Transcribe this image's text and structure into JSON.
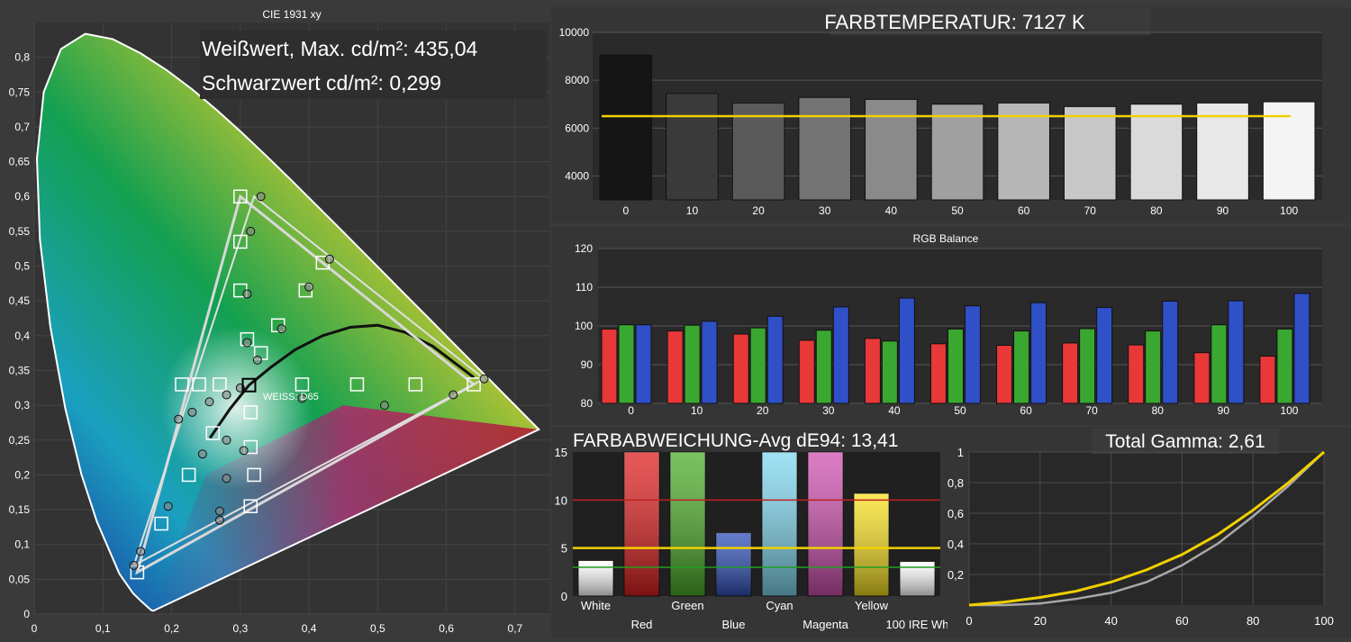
{
  "colors": {
    "background": "#3a3a3a",
    "panel": "#2b2b2b",
    "grid": "#5a5a5a",
    "text": "#ffffff",
    "yellow": "#f0d000",
    "red": "#e83838",
    "green": "#3aa830",
    "blue": "#3050c8",
    "target_red_line": "#c02020",
    "target_green_line": "#20a020"
  },
  "cie": {
    "title": "CIE 1931 xy",
    "white_max_text": "Weißwert, Max. cd/m²: 435,04",
    "black_text": "Schwarzwert cd/m²: 0,299",
    "white_point_label": "WEISS: D65",
    "x_ticks": [
      "0",
      "0,1",
      "0,2",
      "0,3",
      "0,4",
      "0,5",
      "0,6",
      "0,7"
    ],
    "y_ticks": [
      "0",
      "0,05",
      "0,1",
      "0,15",
      "0,2",
      "0,25",
      "0,3",
      "0,35",
      "0,4",
      "0,45",
      "0,5",
      "0,55",
      "0,6",
      "0,65",
      "0,7",
      "0,75",
      "0,8"
    ]
  },
  "color_temp": {
    "title": "FARBTEMPERATUR: 7127 K"
  },
  "rgb": {
    "title": "RGB Balance"
  },
  "deviation": {
    "title": "FARBABWEICHUNG-Avg dE94: 13,41"
  },
  "gamma": {
    "title": "Total Gamma: 2,61"
  },
  "chart_data": [
    {
      "type": "scatter",
      "title": "CIE 1931 xy",
      "xlim": [
        0,
        0.75
      ],
      "ylim": [
        0,
        0.85
      ],
      "target_gamut": [
        [
          0.64,
          0.33
        ],
        [
          0.3,
          0.6
        ],
        [
          0.15,
          0.06
        ]
      ],
      "measured_gamut": [
        [
          0.655,
          0.338
        ],
        [
          0.32,
          0.6
        ],
        [
          0.145,
          0.07
        ]
      ],
      "target_points": [
        [
          0.3127,
          0.329
        ],
        [
          0.3,
          0.6
        ],
        [
          0.3,
          0.535
        ],
        [
          0.3,
          0.465
        ],
        [
          0.31,
          0.395
        ],
        [
          0.33,
          0.375
        ],
        [
          0.42,
          0.505
        ],
        [
          0.395,
          0.465
        ],
        [
          0.355,
          0.415
        ],
        [
          0.15,
          0.06
        ],
        [
          0.185,
          0.13
        ],
        [
          0.225,
          0.2
        ],
        [
          0.26,
          0.26
        ],
        [
          0.315,
          0.29
        ],
        [
          0.315,
          0.24
        ],
        [
          0.32,
          0.2
        ],
        [
          0.315,
          0.155
        ],
        [
          0.215,
          0.33
        ],
        [
          0.24,
          0.33
        ],
        [
          0.27,
          0.33
        ],
        [
          0.39,
          0.33
        ],
        [
          0.47,
          0.33
        ],
        [
          0.555,
          0.33
        ],
        [
          0.64,
          0.33
        ]
      ],
      "measured_points": [
        [
          0.33,
          0.6
        ],
        [
          0.315,
          0.55
        ],
        [
          0.31,
          0.46
        ],
        [
          0.43,
          0.51
        ],
        [
          0.4,
          0.47
        ],
        [
          0.36,
          0.41
        ],
        [
          0.31,
          0.39
        ],
        [
          0.325,
          0.365
        ],
        [
          0.655,
          0.338
        ],
        [
          0.61,
          0.315
        ],
        [
          0.51,
          0.3
        ],
        [
          0.39,
          0.31
        ],
        [
          0.3,
          0.325
        ],
        [
          0.28,
          0.315
        ],
        [
          0.255,
          0.305
        ],
        [
          0.23,
          0.29
        ],
        [
          0.21,
          0.28
        ],
        [
          0.145,
          0.07
        ],
        [
          0.155,
          0.09
        ],
        [
          0.195,
          0.155
        ],
        [
          0.245,
          0.23
        ],
        [
          0.28,
          0.25
        ],
        [
          0.305,
          0.235
        ],
        [
          0.28,
          0.195
        ],
        [
          0.27,
          0.148
        ],
        [
          0.27,
          0.135
        ]
      ],
      "white_point": [
        0.3127,
        0.329
      ],
      "white_point_label": "WEISS: D65"
    },
    {
      "type": "bar",
      "title": "FARBTEMPERATUR: 7127 K",
      "categories": [
        "0",
        "10",
        "20",
        "30",
        "40",
        "50",
        "60",
        "70",
        "80",
        "90",
        "100"
      ],
      "values": [
        9050,
        7450,
        7050,
        7280,
        7200,
        7000,
        7050,
        6900,
        7000,
        7050,
        7100
      ],
      "target": 6500,
      "ylim": [
        3000,
        10000
      ],
      "yticks": [
        "4000",
        "6000",
        "8000",
        "10000"
      ]
    },
    {
      "type": "bar",
      "title": "RGB Balance",
      "categories": [
        "0",
        "10",
        "20",
        "30",
        "40",
        "50",
        "60",
        "70",
        "80",
        "90",
        "100"
      ],
      "series": [
        {
          "values": [
            99.2,
            98.7,
            97.9,
            96.3,
            96.8,
            95.4,
            95.0,
            95.6,
            95.1,
            93.1,
            92.2
          ]
        },
        {
          "values": [
            100.3,
            100.2,
            99.5,
            98.9,
            96.1,
            99.2,
            98.7,
            99.3,
            98.7,
            100.3,
            99.2
          ]
        },
        {
          "values": [
            100.3,
            101.2,
            102.5,
            104.9,
            107.2,
            105.2,
            106.0,
            104.8,
            106.4,
            106.5,
            108.4
          ]
        }
      ],
      "ylim": [
        80,
        120
      ],
      "yticks": [
        "80",
        "90",
        "100",
        "110",
        "120"
      ]
    },
    {
      "type": "bar",
      "title": "FARBABWEICHUNG-Avg dE94: 13,41",
      "categories": [
        "White",
        "Red",
        "Green",
        "Blue",
        "Cyan",
        "Magenta",
        "Yellow",
        "100 IRE Wh"
      ],
      "values": [
        3.7,
        15,
        15,
        6.6,
        15,
        15,
        10.7,
        3.6
      ],
      "bar_colors": [
        "#ffffff",
        "#e02020",
        "#4cae2a",
        "#2f4fb8",
        "#80d8f0",
        "#d050b0",
        "#f8e020",
        "#ffffff"
      ],
      "threshold_lines": [
        10,
        5,
        3
      ],
      "ylim": [
        0,
        15
      ],
      "yticks": [
        "0",
        "5",
        "10",
        "15"
      ]
    },
    {
      "type": "line",
      "title": "Total Gamma: 2,61",
      "xlim": [
        0,
        100
      ],
      "ylim": [
        0,
        1
      ],
      "xticks": [
        "0",
        "20",
        "40",
        "60",
        "80",
        "100"
      ],
      "yticks": [
        "0,2",
        "0,4",
        "0,6",
        "0,8",
        "1"
      ],
      "x": [
        0,
        10,
        20,
        30,
        40,
        50,
        60,
        70,
        80,
        90,
        100
      ],
      "series": [
        {
          "values": [
            0,
            0.0,
            0.01,
            0.04,
            0.08,
            0.15,
            0.26,
            0.4,
            0.58,
            0.78,
            1.0
          ]
        },
        {
          "values": [
            0,
            0.02,
            0.05,
            0.09,
            0.15,
            0.23,
            0.33,
            0.46,
            0.62,
            0.8,
            1.0
          ]
        }
      ]
    }
  ]
}
